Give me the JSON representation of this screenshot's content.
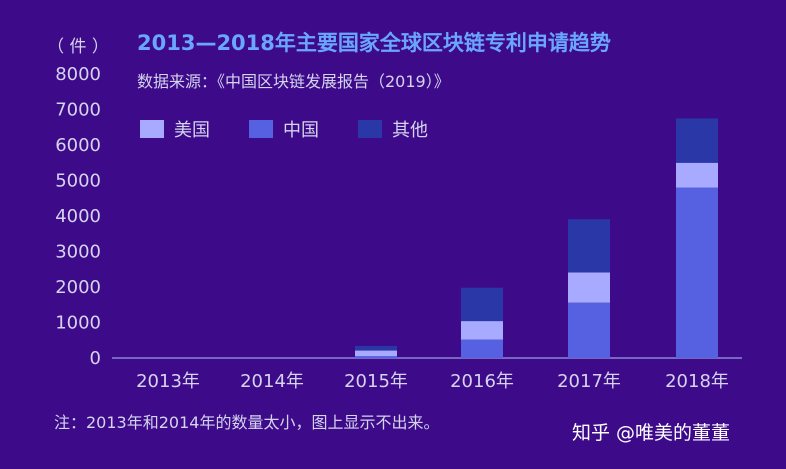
{
  "chart_data": {
    "type": "bar",
    "stacked": true,
    "title": "2013—2018年主要国家全球区块链专利申请趋势",
    "subtitle": "数据来源：《中国区块链发展报告（2019）》",
    "ylabel": "（ 件 ）",
    "xlabel": "",
    "categories": [
      "2013年",
      "2014年",
      "2015年",
      "2016年",
      "2017年",
      "2018年"
    ],
    "ylim": [
      0,
      8000
    ],
    "yticks": [
      0,
      1000,
      2000,
      3000,
      4000,
      5000,
      6000,
      7000,
      8000
    ],
    "legend_position": "top-left",
    "grid": false,
    "series": [
      {
        "name": "中国",
        "color": "#5561e0",
        "values": [
          0,
          0,
          50,
          520,
          1560,
          4800
        ]
      },
      {
        "name": "美国",
        "color": "#a7aaff",
        "values": [
          0,
          0,
          160,
          520,
          850,
          700
        ]
      },
      {
        "name": "其他",
        "color": "#2a37a6",
        "values": [
          0,
          0,
          130,
          940,
          1500,
          1250
        ]
      }
    ],
    "legend_order": [
      "美国",
      "中国",
      "其他"
    ],
    "note": "注：2013年和2014年的数量太小，图上显示不出来。"
  },
  "watermark": "知乎 @唯美的董董",
  "colors": {
    "background": "#3d0a8a",
    "title": "#6aa6ff",
    "text": "#d4d4ee",
    "axis": "#8a86d6"
  }
}
